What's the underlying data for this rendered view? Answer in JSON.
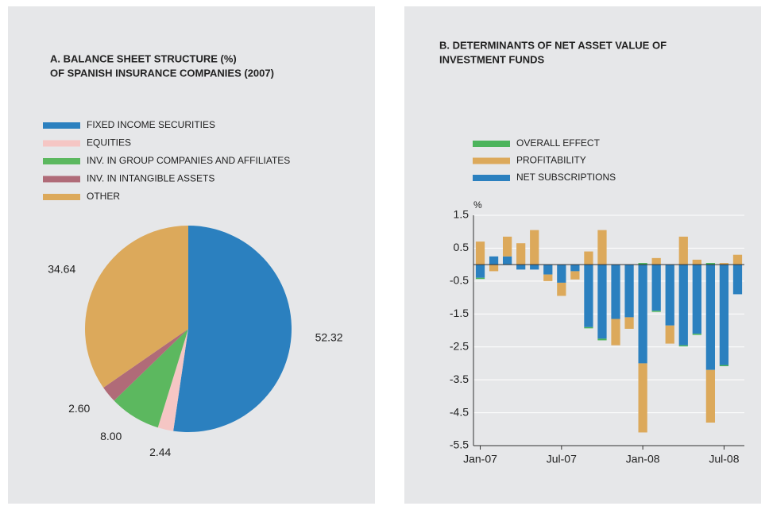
{
  "chart_data": [
    {
      "type": "pie",
      "title": [
        "A.  BALANCE SHEET STRUCTURE (%)",
        "OF SPANISH INSURANCE COMPANIES (2007)"
      ],
      "categories": [
        "FIXED INCOME SECURITIES",
        "EQUITIES",
        "INV. IN GROUP COMPANIES AND AFFILIATES",
        "INV. IN INTANGIBLE ASSETS",
        "OTHER"
      ],
      "values": [
        52.32,
        2.44,
        8.0,
        2.6,
        34.64
      ],
      "value_labels": [
        "52.32",
        "2.44",
        "8.00",
        "2.60",
        "34.64"
      ],
      "colors": [
        "#2b80bf",
        "#f5c6c4",
        "#5cb85f",
        "#b06b78",
        "#dca95b"
      ]
    },
    {
      "type": "stacked_bar",
      "title": [
        "B.  DETERMINANTS OF NET ASSET VALUE OF",
        "INVESTMENT FUNDS"
      ],
      "y_unit": "%",
      "categories": [
        "Jan-07",
        null,
        null,
        null,
        null,
        null,
        "Jul-07",
        null,
        null,
        null,
        null,
        null,
        "Jan-08",
        null,
        null,
        null,
        null,
        null,
        "Jul-08",
        null
      ],
      "series": [
        {
          "name": "NET SUBSCRIPTIONS",
          "color": "#2b80bf",
          "values": [
            -0.4,
            0.25,
            0.25,
            -0.15,
            -0.15,
            -0.3,
            -0.55,
            -0.2,
            -1.9,
            -2.25,
            -1.65,
            -1.6,
            -3.0,
            -1.4,
            -1.85,
            -2.45,
            -2.1,
            -3.2,
            -3.05,
            -0.9
          ]
        },
        {
          "name": "PROFITABILITY",
          "color": "#dca95b",
          "values": [
            0.7,
            -0.2,
            0.6,
            0.65,
            1.05,
            -0.2,
            -0.4,
            -0.25,
            0.4,
            1.05,
            -0.8,
            -0.35,
            -2.1,
            0.2,
            -0.55,
            0.85,
            0.15,
            -1.6,
            0.05,
            0.3
          ]
        },
        {
          "name": "OVERALL EFFECT",
          "color": "#4cb45c",
          "values": [
            -0.02,
            0,
            0,
            0,
            0,
            0,
            0,
            0,
            -0.03,
            -0.05,
            0,
            0,
            0.05,
            -0.03,
            0,
            -0.03,
            -0.03,
            0.05,
            -0.03,
            0
          ]
        }
      ],
      "ylim": [
        -5.5,
        1.5
      ],
      "yticks": [
        1.5,
        0.5,
        -0.5,
        -1.5,
        -2.5,
        -3.5,
        -4.5,
        -5.5
      ],
      "grid": true
    }
  ]
}
